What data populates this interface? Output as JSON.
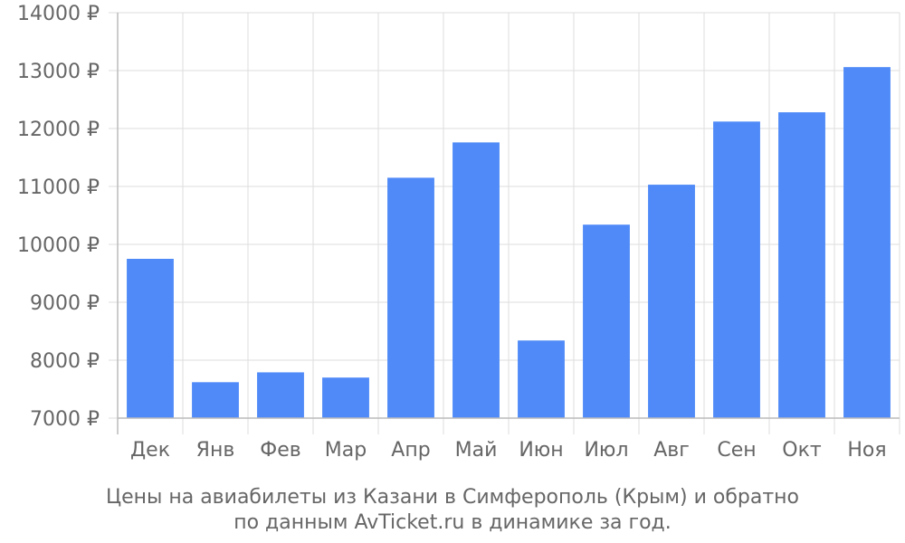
{
  "chart_data": {
    "type": "bar",
    "categories": [
      "Дек",
      "Янв",
      "Фев",
      "Мар",
      "Апр",
      "Май",
      "Июн",
      "Июл",
      "Авг",
      "Сен",
      "Окт",
      "Ноя"
    ],
    "values": [
      9750,
      7620,
      7790,
      7700,
      11150,
      11760,
      8340,
      10340,
      11030,
      12120,
      12280,
      13060
    ],
    "ylim": [
      7000,
      14000
    ],
    "yticks": [
      7000,
      8000,
      9000,
      10000,
      11000,
      12000,
      13000,
      14000
    ],
    "ytick_labels": [
      "7000 ₽",
      "8000 ₽",
      "9000 ₽",
      "10000 ₽",
      "11000 ₽",
      "12000 ₽",
      "13000 ₽",
      "14000 ₽"
    ],
    "bar_color": "#4f8af8",
    "grid": true
  },
  "caption": {
    "line1": "Цены на авиабилеты из Казани в Симферополь (Крым) и обратно",
    "line2": "по данным AvTicket.ru в динамике за год."
  }
}
